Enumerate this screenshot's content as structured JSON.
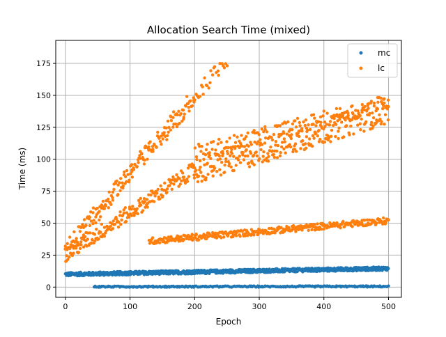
{
  "chart_data": {
    "type": "scatter",
    "title": "Allocation Search Time (mixed)",
    "xlabel": "Epoch",
    "ylabel": "Time (ms)",
    "xlim": [
      -15,
      520
    ],
    "ylim": [
      -8,
      193
    ],
    "xticks": [
      0,
      100,
      200,
      300,
      400,
      500
    ],
    "yticks": [
      0,
      25,
      50,
      75,
      100,
      125,
      150,
      175
    ],
    "grid": true,
    "legend": "top-right",
    "series": [
      {
        "name": "mc",
        "color": "#1f77b4",
        "bands": [
          {
            "x_start": 0,
            "x_end": 500,
            "y_start": 10,
            "y_end": 14.5,
            "spread": 1.4,
            "step": 0.5
          },
          {
            "x_start": 45,
            "x_end": 500,
            "y_start": 0.3,
            "y_end": 0.5,
            "spread": 0.5,
            "step": 1.5
          }
        ]
      },
      {
        "name": "lc",
        "color": "#ff7f0e",
        "bands": [
          {
            "x_start": 0,
            "x_end": 250,
            "y_start": 30,
            "y_end": 178,
            "spread": 6,
            "step": 2
          },
          {
            "x_start": 0,
            "x_end": 200,
            "y_start": 27,
            "y_end": 150,
            "spread": 8,
            "step": 2
          },
          {
            "x_start": 0,
            "x_end": 200,
            "y_start": 25,
            "y_end": 92,
            "spread": 6,
            "step": 1
          },
          {
            "x_start": 200,
            "x_end": 500,
            "y_start": 90,
            "y_end": 138,
            "spread": 10,
            "step": 1
          },
          {
            "x_start": 200,
            "x_end": 500,
            "y_start": 105,
            "y_end": 145,
            "spread": 6,
            "step": 2
          },
          {
            "x_start": 130,
            "x_end": 500,
            "y_start": 36,
            "y_end": 52,
            "spread": 2.5,
            "step": 1
          }
        ]
      }
    ]
  }
}
